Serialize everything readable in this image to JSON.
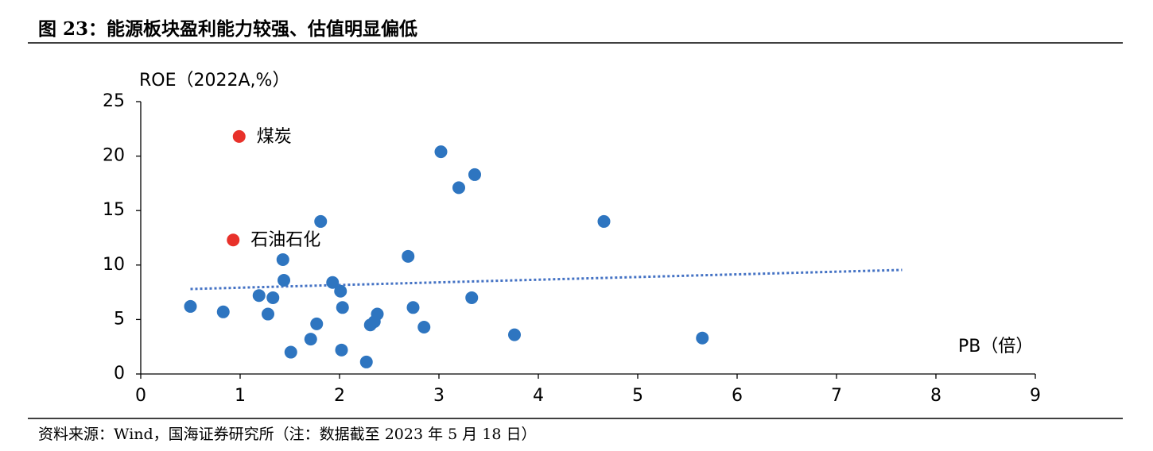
{
  "chart_data": {
    "type": "scatter",
    "title": "图 23：能源板块盈利能力较强、估值明显偏低",
    "source": "资料来源：Wind，国海证券研究所（注：数据截至 2023 年 5 月 18 日）",
    "y_label": "ROE（2022A,%）",
    "x_label": "PB（倍）",
    "xlim": [
      0,
      9
    ],
    "xticks": [
      0,
      1,
      2,
      3,
      4,
      5,
      6,
      7,
      8,
      9
    ],
    "ylim": [
      0,
      25
    ],
    "yticks": [
      0,
      5,
      10,
      15,
      20,
      25
    ],
    "series": [
      {
        "color": "#2e75c0",
        "x": [
          0.5,
          0.83,
          1.19,
          1.28,
          1.33,
          1.43,
          1.44,
          1.51,
          1.71,
          1.77,
          1.81,
          1.93,
          2.01,
          2.02,
          2.03,
          2.27,
          2.31,
          2.35,
          2.38,
          2.69,
          2.74,
          2.85,
          3.02,
          3.2,
          3.33,
          3.36,
          3.76,
          4.66,
          5.65
        ],
        "values": [
          6.2,
          5.7,
          7.2,
          5.5,
          7.0,
          10.5,
          8.6,
          2.0,
          3.2,
          4.6,
          14.0,
          8.4,
          7.6,
          2.2,
          6.1,
          1.1,
          4.5,
          4.8,
          5.5,
          10.8,
          6.1,
          4.3,
          20.4,
          17.1,
          7.0,
          18.3,
          3.6,
          14.0,
          3.3
        ]
      },
      {
        "name": "煤炭",
        "color": "#e8312a",
        "x": [
          0.99
        ],
        "values": [
          21.8
        ]
      },
      {
        "name": "石油石化",
        "color": "#e8312a",
        "x": [
          0.93
        ],
        "values": [
          12.3
        ]
      }
    ],
    "trendline": {
      "color": "#4472c4",
      "x": [
        0.5,
        7.66
      ],
      "values": [
        7.8,
        9.55
      ]
    }
  }
}
